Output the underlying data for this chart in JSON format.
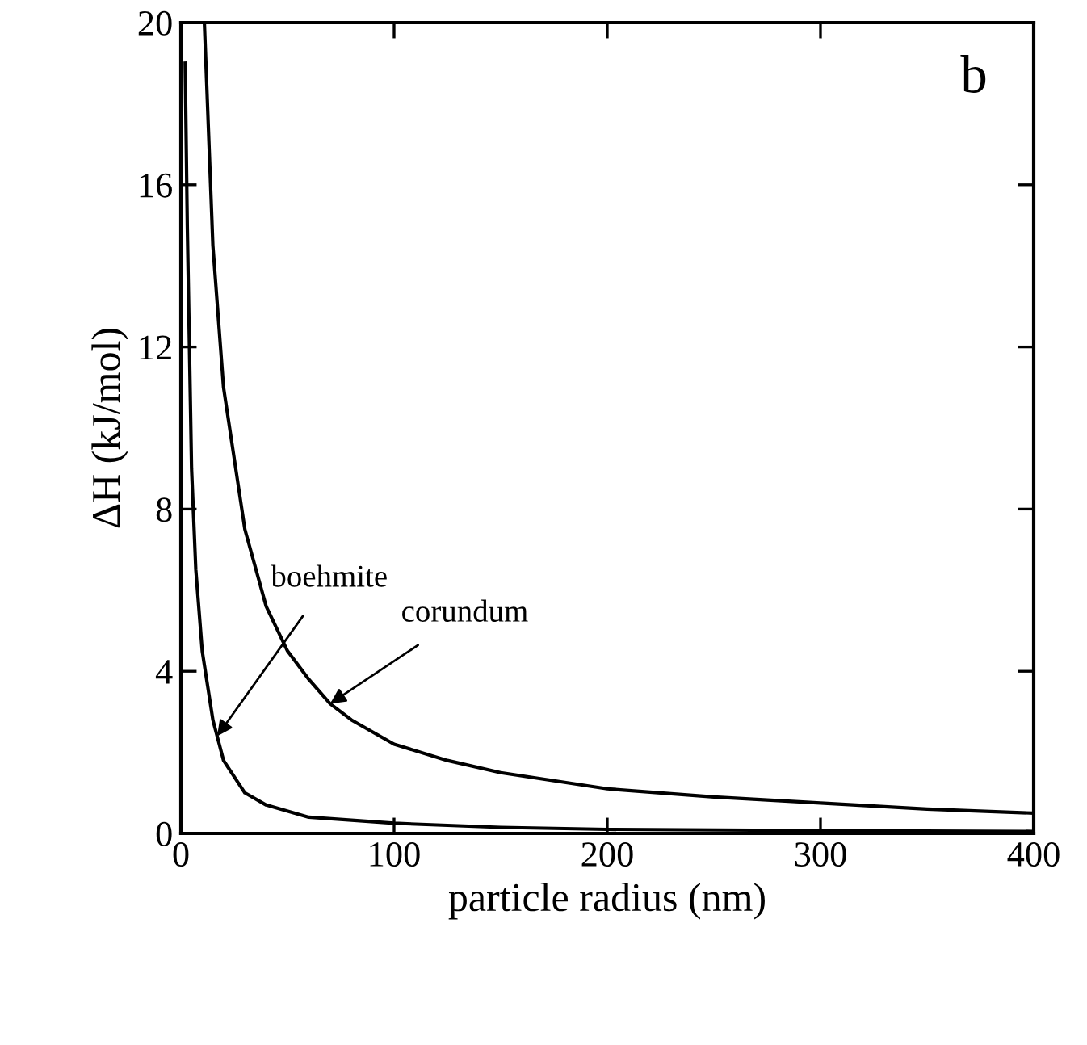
{
  "chart_data": {
    "type": "line",
    "xlabel": "particle radius (nm)",
    "ylabel": "ΔH (kJ/mol)",
    "xlim": [
      0,
      400
    ],
    "ylim": [
      0,
      20
    ],
    "xticks": [
      0,
      100,
      200,
      300,
      400
    ],
    "yticks": [
      0,
      4,
      8,
      12,
      16,
      20
    ],
    "grid": false,
    "series": [
      {
        "color": "#000000",
        "x": [
          11,
          15,
          20,
          30,
          40,
          50,
          60,
          70,
          80,
          100,
          125,
          150,
          200,
          250,
          300,
          350,
          400
        ],
        "values": [
          20,
          14.5,
          11,
          7.5,
          5.6,
          4.5,
          3.8,
          3.2,
          2.8,
          2.2,
          1.8,
          1.5,
          1.1,
          0.9,
          0.75,
          0.6,
          0.5
        ]
      },
      {
        "color": "#000000",
        "x": [
          2,
          3,
          5,
          7,
          10,
          15,
          20,
          30,
          40,
          60,
          100,
          150,
          200,
          300,
          400
        ],
        "values": [
          19,
          15,
          9,
          6.5,
          4.5,
          2.8,
          1.8,
          1.0,
          0.7,
          0.4,
          0.25,
          0.15,
          0.1,
          0.07,
          0.05
        ]
      }
    ],
    "annotations": [
      {
        "text": "boehmite",
        "x": 17,
        "y": 2.4
      },
      {
        "text": "corundum",
        "x": 70,
        "y": 3.2
      },
      "b"
    ]
  }
}
